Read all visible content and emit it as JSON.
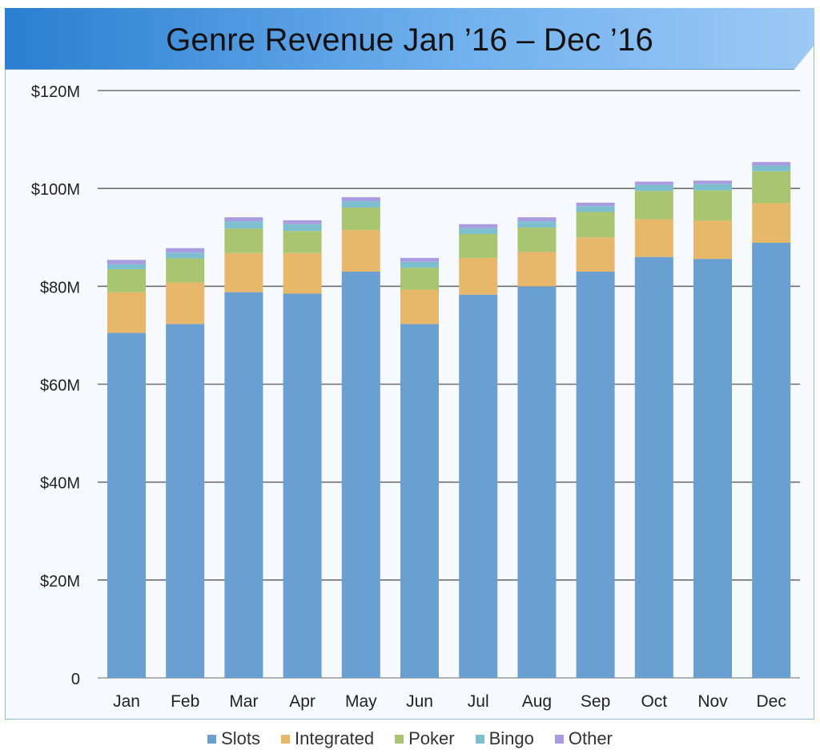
{
  "chart_data": {
    "type": "bar",
    "stacked": true,
    "title": "Genre Revenue Jan ’16 – Dec ’16",
    "xlabel": "",
    "ylabel": "",
    "ylim": [
      0,
      120
    ],
    "y_ticks": [
      0,
      20,
      40,
      60,
      80,
      100,
      120
    ],
    "y_tick_labels": [
      "0",
      "$20M",
      "$40M",
      "$60M",
      "$80M",
      "$100M",
      "$120M"
    ],
    "categories": [
      "Jan",
      "Feb",
      "Mar",
      "Apr",
      "May",
      "Jun",
      "Jul",
      "Aug",
      "Sep",
      "Oct",
      "Nov",
      "Dec"
    ],
    "series": [
      {
        "name": "Slots",
        "color": "#6a9fd2",
        "values": [
          70.5,
          72.3,
          78.8,
          78.5,
          83.0,
          72.3,
          78.3,
          80.0,
          83.0,
          86.0,
          85.6,
          88.9
        ]
      },
      {
        "name": "Integrated",
        "color": "#e8b86a",
        "values": [
          8.3,
          8.5,
          8.0,
          8.3,
          8.5,
          7.0,
          7.5,
          7.0,
          7.0,
          7.7,
          7.8,
          8.1
        ]
      },
      {
        "name": "Poker",
        "color": "#a9c56f",
        "values": [
          4.7,
          4.9,
          5.0,
          4.5,
          4.6,
          4.5,
          4.9,
          5.0,
          5.2,
          5.8,
          6.2,
          6.5
        ]
      },
      {
        "name": "Bingo",
        "color": "#7ebfcf",
        "values": [
          1.0,
          1.2,
          1.5,
          1.4,
          1.3,
          1.2,
          1.2,
          1.3,
          1.2,
          1.2,
          1.3,
          1.2
        ]
      },
      {
        "name": "Other",
        "color": "#a99be0",
        "values": [
          0.9,
          0.9,
          0.8,
          0.8,
          0.8,
          0.8,
          0.8,
          0.8,
          0.7,
          0.7,
          0.7,
          0.7
        ]
      }
    ],
    "legend_position": "bottom",
    "grid": true
  }
}
